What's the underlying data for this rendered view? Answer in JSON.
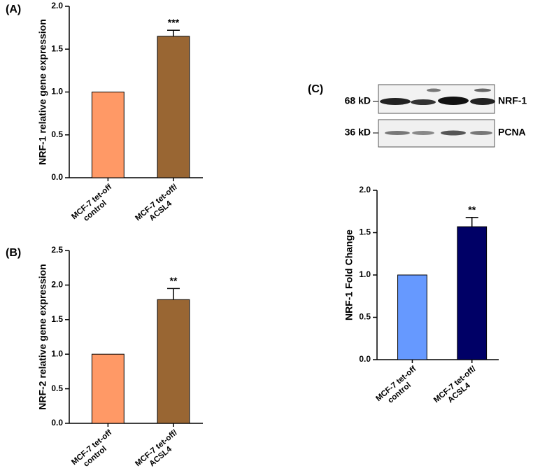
{
  "chart_data": [
    {
      "type": "bar",
      "panel": "(A)",
      "ylabel": "NRF-1 relative gene expression",
      "categories": [
        [
          "MCF-7 tet-off",
          "control"
        ],
        [
          "MCF-7 tet-off/",
          "ACSL4"
        ]
      ],
      "values": [
        1.0,
        1.65
      ],
      "errors": [
        null,
        0.07
      ],
      "annotations": [
        null,
        "***"
      ],
      "colors": [
        "#ff9966",
        "#996633"
      ],
      "ylim": [
        0,
        2.0
      ],
      "yticks": [
        {
          "value": 0,
          "label": "0.0"
        },
        {
          "value": 0.5,
          "label": "0.5"
        },
        {
          "value": 1.0,
          "label": "1.0"
        },
        {
          "value": 1.5,
          "label": "1.5"
        },
        {
          "value": 2.0,
          "label": "2.0"
        }
      ]
    },
    {
      "type": "bar",
      "panel": "(B)",
      "ylabel": "NRF-2 relative gene expression",
      "categories": [
        [
          "MCF-7 tet-off",
          "control"
        ],
        [
          "MCF-7 tet-off/",
          "ACSL4"
        ]
      ],
      "values": [
        1.0,
        1.79
      ],
      "errors": [
        null,
        0.16
      ],
      "annotations": [
        null,
        "**"
      ],
      "colors": [
        "#ff9966",
        "#996633"
      ],
      "ylim": [
        0,
        2.5
      ],
      "yticks": [
        {
          "value": 0,
          "label": "0.0"
        },
        {
          "value": 0.5,
          "label": "0.5"
        },
        {
          "value": 1.0,
          "label": "1.0"
        },
        {
          "value": 1.5,
          "label": "1.5"
        },
        {
          "value": 2.0,
          "label": "2.0"
        },
        {
          "value": 2.5,
          "label": "2.5"
        }
      ]
    },
    {
      "type": "bar",
      "panel": "(C)",
      "ylabel": "NRF-1 Fold Change",
      "categories": [
        [
          "MCF-7 tet-off",
          "control"
        ],
        [
          "MCF-7 tet-off/",
          "ACSL4"
        ]
      ],
      "values": [
        1.0,
        1.57
      ],
      "errors": [
        null,
        0.11
      ],
      "annotations": [
        null,
        "**"
      ],
      "colors": [
        "#6699ff",
        "#000066"
      ],
      "ylim": [
        0,
        2.0
      ],
      "yticks": [
        {
          "value": 0,
          "label": "0.0"
        },
        {
          "value": 0.5,
          "label": "0.5"
        },
        {
          "value": 1.0,
          "label": "1.0"
        },
        {
          "value": 1.5,
          "label": "1.5"
        },
        {
          "value": 2.0,
          "label": "2.0"
        }
      ]
    }
  ],
  "blot": {
    "size_labels": [
      "68 kD",
      "36 kD"
    ],
    "protein_labels": [
      "NRF-1",
      "PCNA"
    ]
  }
}
